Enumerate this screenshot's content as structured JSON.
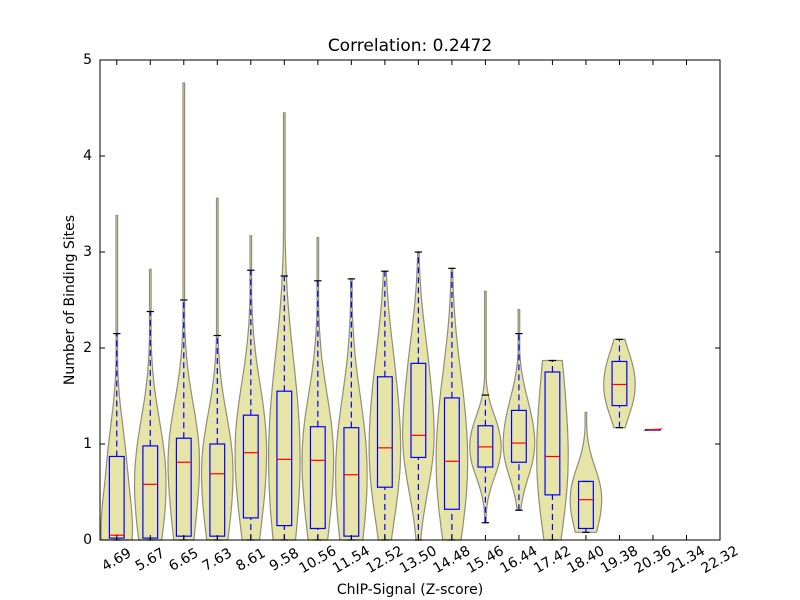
{
  "chart_data": {
    "type": "violin-box",
    "title": "Correlation: 0.2472",
    "x_label": "ChIP-Signal (Z-score)",
    "y_label": "Number of Binding Sites",
    "categories": [
      "4.69",
      "5.67",
      "6.65",
      "7.63",
      "8.61",
      "9.58",
      "10.56",
      "11.54",
      "12.52",
      "13.50",
      "14.48",
      "15.46",
      "16.44",
      "17.42",
      "18.40",
      "19.38",
      "20.36",
      "21.34",
      "22.32"
    ],
    "min": [
      0,
      0,
      0,
      0,
      0,
      0,
      0,
      0,
      0,
      0,
      0,
      0.18,
      0.31,
      0,
      0.08,
      1.17,
      1.15,
      null,
      null
    ],
    "whisker_low": [
      0,
      0,
      0,
      0,
      0,
      0,
      0,
      0,
      0,
      0,
      0,
      0.18,
      0.31,
      0,
      0.08,
      1.17,
      1.15,
      null,
      null
    ],
    "q1": [
      0.02,
      0.02,
      0.04,
      0.04,
      0.23,
      0.15,
      0.12,
      0.04,
      0.55,
      0.86,
      0.32,
      0.76,
      0.81,
      0.47,
      0.12,
      1.4,
      1.15,
      null,
      null
    ],
    "median": [
      0.05,
      0.58,
      0.81,
      0.69,
      0.91,
      0.84,
      0.83,
      0.68,
      0.96,
      1.09,
      0.82,
      0.97,
      1.01,
      0.87,
      0.42,
      1.62,
      1.15,
      null,
      null
    ],
    "q3": [
      0.87,
      0.98,
      1.06,
      1.0,
      1.3,
      1.55,
      1.18,
      1.17,
      1.7,
      1.84,
      1.48,
      1.19,
      1.35,
      1.75,
      0.61,
      1.86,
      1.15,
      null,
      null
    ],
    "whisker_high": [
      2.15,
      2.38,
      2.5,
      2.13,
      2.81,
      2.75,
      2.7,
      2.72,
      2.8,
      3.0,
      2.83,
      1.51,
      2.15,
      1.87,
      0.61,
      2.09,
      1.15,
      null,
      null
    ],
    "max": [
      3.38,
      2.82,
      4.76,
      3.56,
      3.17,
      4.45,
      3.15,
      2.72,
      2.8,
      3.0,
      2.83,
      2.59,
      2.4,
      1.87,
      1.33,
      2.09,
      1.15,
      null,
      null
    ],
    "violin_color": "#e6e4a6",
    "violin_edge": "#8f8f78",
    "box_color": "#0000ff",
    "median_color": "#ff0000",
    "ylim": [
      0,
      5
    ],
    "yticks": [
      0,
      1,
      2,
      3,
      4,
      5
    ]
  }
}
